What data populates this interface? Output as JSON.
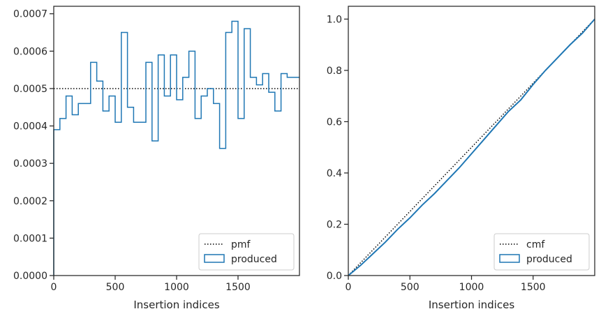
{
  "colors": {
    "series": "#1f77b4",
    "reference": "#000000",
    "frame": "#262626"
  },
  "chart_data": [
    {
      "type": "line",
      "subtype": "step-histogram",
      "xlabel": "Insertion indices",
      "ylabel": "",
      "xlim": [
        0,
        2000
      ],
      "ylim": [
        0,
        0.00072
      ],
      "x_ticks": [
        0,
        500,
        1000,
        1500
      ],
      "x_tick_labels": [
        "0",
        "500",
        "1000",
        "1500"
      ],
      "y_ticks": [
        0,
        0.0001,
        0.0002,
        0.0003,
        0.0004,
        0.0005,
        0.0006,
        0.0007
      ],
      "y_tick_labels": [
        "0.0000",
        "0.0001",
        "0.0002",
        "0.0003",
        "0.0004",
        "0.0005",
        "0.0006",
        "0.0007"
      ],
      "grid": false,
      "legend_position": "lower-right",
      "bin_width": 50,
      "series": [
        {
          "name": "pmf",
          "style": "dotted",
          "x": [
            0,
            2000
          ],
          "y": [
            0.0005,
            0.0005
          ]
        },
        {
          "name": "produced",
          "style": "step",
          "bin_edges_start": 0,
          "values": [
            0.00039,
            0.00042,
            0.00048,
            0.00043,
            0.00046,
            0.00046,
            0.00057,
            0.00052,
            0.00044,
            0.00048,
            0.00041,
            0.00065,
            0.00045,
            0.00041,
            0.00041,
            0.00057,
            0.00036,
            0.00059,
            0.00048,
            0.00059,
            0.00047,
            0.00053,
            0.0006,
            0.00042,
            0.00048,
            0.0005,
            0.00046,
            0.00034,
            0.00065,
            0.00068,
            0.00042,
            0.00066,
            0.00053,
            0.00051,
            0.00054,
            0.00049,
            0.00044,
            0.00054,
            0.00053,
            0.00053
          ]
        }
      ]
    },
    {
      "type": "line",
      "xlabel": "Insertion indices",
      "ylabel": "",
      "xlim": [
        0,
        2000
      ],
      "ylim": [
        0,
        1.05
      ],
      "x_ticks": [
        0,
        500,
        1000,
        1500
      ],
      "x_tick_labels": [
        "0",
        "500",
        "1000",
        "1500"
      ],
      "y_ticks": [
        0,
        0.2,
        0.4,
        0.6,
        0.8,
        1.0
      ],
      "y_tick_labels": [
        "0.0",
        "0.2",
        "0.4",
        "0.6",
        "0.8",
        "1.0"
      ],
      "grid": false,
      "legend_position": "lower-right",
      "series": [
        {
          "name": "cmf",
          "style": "dotted",
          "x": [
            0,
            2000
          ],
          "y": [
            0,
            1.0
          ]
        },
        {
          "name": "produced",
          "style": "solid",
          "x": [
            0,
            100,
            200,
            300,
            400,
            500,
            600,
            700,
            800,
            900,
            1000,
            1100,
            1200,
            1300,
            1400,
            1500,
            1600,
            1700,
            1800,
            1900,
            2000
          ],
          "y": [
            0,
            0.04,
            0.085,
            0.13,
            0.18,
            0.225,
            0.275,
            0.32,
            0.37,
            0.42,
            0.475,
            0.53,
            0.585,
            0.64,
            0.685,
            0.745,
            0.8,
            0.85,
            0.9,
            0.945,
            1.0
          ]
        }
      ]
    }
  ]
}
